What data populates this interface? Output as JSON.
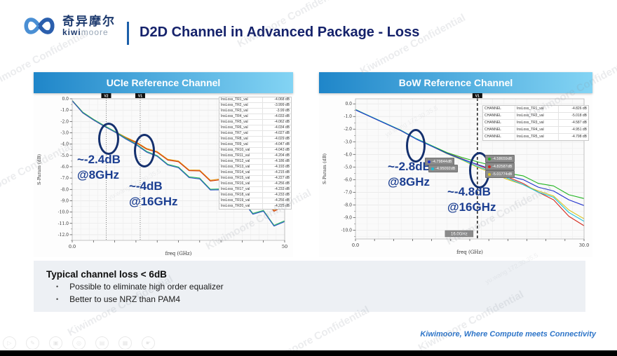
{
  "header": {
    "logo_cn": "奇异摩尔",
    "logo_kiwi": "kiwi",
    "logo_moore": "moore",
    "title": "D2D Channel in Advanced Package - Loss"
  },
  "left_panel": {
    "title": "UCIe Reference Channel",
    "ann1": {
      "l1": "~-2.4dB",
      "l2": "@8GHz"
    },
    "ann2": {
      "l1": "~-4dB",
      "l2": "@16GHz"
    }
  },
  "right_panel": {
    "title": "BoW Reference Channel",
    "ann1": {
      "l1": "~-2.8dB",
      "l2": "@8GHz"
    },
    "ann2": {
      "l1": "~-4.8dB",
      "l2": "@16GHz"
    },
    "badges": [
      {
        "dot": "#2233cc",
        "text": "-4.79844dB"
      },
      {
        "dot": "#19c0d8",
        "text": "-4.95092dB"
      },
      {
        "dot": "#1fb41f",
        "text": "-4.58659dB"
      },
      {
        "dot": "#d42a1e",
        "text": "-4.82587dB"
      },
      {
        "dot": "#d8c520",
        "text": "-5.01774dB"
      }
    ]
  },
  "notes": {
    "title": "Typical channel loss < 6dB",
    "bullets": [
      "Possible to eliminate high order equalizer",
      "Better to use NRZ than PAM4"
    ]
  },
  "footer": {
    "tagline": "Kiwimoore, Where Compute meets Connectivity",
    "toolbar_icons": [
      {
        "name": "play-icon",
        "glyph": "▷"
      },
      {
        "name": "edit-icon",
        "glyph": "✎"
      },
      {
        "name": "copy-icon",
        "glyph": "▣"
      },
      {
        "name": "search-icon",
        "glyph": "◎"
      },
      {
        "name": "save-icon",
        "glyph": "▤"
      },
      {
        "name": "image-icon",
        "glyph": "▦"
      },
      {
        "name": "hand-icon",
        "glyph": "☛"
      }
    ]
  },
  "watermarks": [
    {
      "text": "Kiwimoore Confidential"
    },
    {
      "text": "Kiwimoore Confidential"
    },
    {
      "text": "Kiwimoore Confidential"
    },
    {
      "text": "Kiwimoore Confidential"
    },
    {
      "text": "Kiwimoore Confidential"
    },
    {
      "text": "Kiwimoore Confidential"
    },
    {
      "text": "Kiwimoore Confidential"
    },
    {
      "text": "Kiwimoore Confidential"
    },
    {
      "text": "Kiwimoore Confidential"
    },
    {
      "text": "Kiwimoore Confidential"
    },
    {
      "text": "yu.wang 172.30.35.5",
      "small": true
    },
    {
      "text": "yu.wang 172.30.35.5",
      "small": true
    },
    {
      "text": "yu.wang 172.30.35.5",
      "small": true
    }
  ],
  "chart_data": [
    {
      "type": "line",
      "title": "UCIe Reference Channel insertion loss",
      "xlabel": "freq (GHz)",
      "ylabel": "S-Param (dB)",
      "xlim": [
        0,
        50
      ],
      "ylim": [
        -12.5,
        0
      ],
      "x_ticks": [
        {
          "v": 0,
          "label": "0.0"
        },
        {
          "v": 50,
          "label": "50"
        }
      ],
      "y_tick_step": 1,
      "grid_x_step": 2,
      "x_tick_step": 5,
      "legend_position": "right-inside",
      "grid": true,
      "marker_style": "dotted",
      "markers": [
        {
          "x": 8,
          "label": "V2"
        },
        {
          "x": 16,
          "label": "V1"
        }
      ],
      "series": [
        {
          "name": "upper-bundle-orange",
          "color": "#e8950f",
          "x": [
            0,
            2.5,
            5,
            7.5,
            10,
            12.5,
            15,
            17.5,
            20,
            22.5,
            25,
            27.5,
            30,
            32.5,
            35,
            37.5,
            40,
            42.5,
            45,
            47.5,
            50
          ],
          "y": [
            -0.15,
            -1.19,
            -1.81,
            -2.36,
            -2.87,
            -3.37,
            -3.8,
            -4.38,
            -4.66,
            -5.34,
            -5.49,
            -6.28,
            -6.3,
            -7.19,
            -7.08,
            -8.09,
            -7.86,
            -8.98,
            -8.62,
            -9.86,
            -9.37
          ]
        },
        {
          "name": "upper-bundle-red",
          "color": "#d03a10",
          "x": [
            0,
            2.5,
            5,
            7.5,
            10,
            12.5,
            15,
            17.5,
            20,
            22.5,
            25,
            27.5,
            30,
            32.5,
            35,
            37.5,
            40,
            42.5,
            45,
            47.5,
            50
          ],
          "y": [
            -0.18,
            -1.25,
            -1.87,
            -2.42,
            -2.93,
            -3.43,
            -3.87,
            -4.45,
            -4.73,
            -5.41,
            -5.56,
            -6.35,
            -6.37,
            -7.26,
            -7.15,
            -8.16,
            -7.93,
            -9.05,
            -8.69,
            -9.93,
            -9.44
          ]
        },
        {
          "name": "lower-bundle-green",
          "color": "#2fbf62",
          "x": [
            0,
            2.5,
            5,
            7.5,
            10,
            12.5,
            15,
            17.5,
            20,
            22.5,
            25,
            27.5,
            30,
            32.5,
            35,
            37.5,
            40,
            42.5,
            45,
            47.5,
            50
          ],
          "y": [
            -0.15,
            -1.19,
            -1.81,
            -2.36,
            -2.87,
            -3.46,
            -3.98,
            -4.64,
            -5.01,
            -5.78,
            -6.02,
            -6.89,
            -7.0,
            -7.98,
            -7.96,
            -9.05,
            -8.91,
            -10.12,
            -9.85,
            -11.17,
            -10.77
          ]
        },
        {
          "name": "lower-bundle-blue",
          "color": "#2a52c4",
          "x": [
            0,
            2.5,
            5,
            7.5,
            10,
            12.5,
            15,
            17.5,
            20,
            22.5,
            25,
            27.5,
            30,
            32.5,
            35,
            37.5,
            40,
            42.5,
            45,
            47.5,
            50
          ],
          "y": [
            -0.18,
            -1.25,
            -1.87,
            -2.42,
            -2.93,
            -3.53,
            -4.05,
            -4.71,
            -5.08,
            -5.85,
            -6.09,
            -6.96,
            -7.07,
            -8.05,
            -8.03,
            -9.12,
            -8.98,
            -10.19,
            -9.92,
            -11.24,
            -10.84
          ]
        }
      ],
      "legend_rows": [
        [
          "InsLoss_TR1_val",
          "-4.068 dB"
        ],
        [
          "InsLoss_TR2_val",
          "-3.999 dB"
        ],
        [
          "InsLoss_TR3_val",
          "-3.99 dB"
        ],
        [
          "InsLoss_TR4_val",
          "-4.033 dB"
        ],
        [
          "InsLoss_TR5_val",
          "-4.062 dB"
        ],
        [
          "InsLoss_TR6_val",
          "-4.034 dB"
        ],
        [
          "InsLoss_TR7_val",
          "-4.027 dB"
        ],
        [
          "InsLoss_TR8_val",
          "-4.029 dB"
        ],
        [
          "InsLoss_TR9_val",
          "-4.047 dB"
        ],
        [
          "InsLoss_TR10_val",
          "-4.043 dB"
        ],
        [
          "InsLoss_TR11_val",
          "-4.204 dB"
        ],
        [
          "InsLoss_TR12_val",
          "-4.186 dB"
        ],
        [
          "InsLoss_TR13_val",
          "-4.193 dB"
        ],
        [
          "InsLoss_TR14_val",
          "-4.215 dB"
        ],
        [
          "InsLoss_TR15_val",
          "-4.227 dB"
        ],
        [
          "InsLoss_TR16_val",
          "-4.256 dB"
        ],
        [
          "InsLoss_TR17_val",
          "-4.233 dB"
        ],
        [
          "InsLoss_TR18_val",
          "-4.233 dB"
        ],
        [
          "InsLoss_TR19_val",
          "-4.256 dB"
        ],
        [
          "InsLoss_TR20_val",
          "-4.225 dB"
        ]
      ],
      "annotations": [
        "~-2.4dB @8GHz",
        "~-4dB @16GHz"
      ]
    },
    {
      "type": "line",
      "title": "BoW Reference Channel insertion loss",
      "xlabel": "freq (GHz)",
      "ylabel": "S-Param (dB)",
      "xlim": [
        0,
        30
      ],
      "ylim": [
        -10.7,
        0.4
      ],
      "x_ticks": [
        {
          "v": 0,
          "label": "0.0"
        },
        {
          "v": 30,
          "label": "30.0"
        }
      ],
      "y_tick_step": 1,
      "grid_x_step": 1.5,
      "x_tick_step": 2.5,
      "grid": true,
      "marker_style": "dashed",
      "markers": [
        {
          "x": 16,
          "label": "V1"
        }
      ],
      "marker_value_label": "16.0GHz",
      "series": [
        {
          "name": "InsLoss_TR1",
          "color": "#d42a1e",
          "x": [
            0,
            2,
            4,
            6,
            8,
            10,
            12,
            14,
            16,
            18,
            20,
            22,
            24,
            26,
            28,
            30
          ],
          "y": [
            -0.45,
            -1.02,
            -1.57,
            -2.12,
            -2.78,
            -3.33,
            -3.9,
            -4.35,
            -4.826,
            -5.3,
            -5.8,
            -6.3,
            -7.0,
            -7.6,
            -8.9,
            -9.65
          ]
        },
        {
          "name": "InsLoss_TR2",
          "color": "#d8c520",
          "x": [
            0,
            2,
            4,
            6,
            8,
            10,
            12,
            14,
            16,
            18,
            20,
            22,
            24,
            26,
            28,
            30
          ],
          "y": [
            -0.47,
            -1.02,
            -1.58,
            -2.14,
            -2.79,
            -3.35,
            -3.95,
            -4.45,
            -5.018,
            -5.5,
            -6.0,
            -6.4,
            -6.9,
            -7.3,
            -8.4,
            -9.1
          ]
        },
        {
          "name": "InsLoss_TR3",
          "color": "#1fb41f",
          "x": [
            0,
            2,
            4,
            6,
            8,
            10,
            12,
            14,
            16,
            18,
            20,
            22,
            24,
            26,
            28,
            30
          ],
          "y": [
            -0.45,
            -1.0,
            -1.55,
            -2.1,
            -2.75,
            -3.3,
            -3.85,
            -4.25,
            -4.587,
            -4.9,
            -5.5,
            -5.7,
            -6.3,
            -6.5,
            -7.2,
            -7.5
          ]
        },
        {
          "name": "InsLoss_TR4",
          "color": "#19c0d8",
          "x": [
            0,
            2,
            4,
            6,
            8,
            10,
            12,
            14,
            16,
            18,
            20,
            22,
            24,
            26,
            28,
            30
          ],
          "y": [
            -0.46,
            -1.01,
            -1.56,
            -2.11,
            -2.77,
            -3.34,
            -3.93,
            -4.42,
            -4.951,
            -5.4,
            -5.9,
            -6.4,
            -7.0,
            -7.4,
            -8.6,
            -9.3
          ]
        },
        {
          "name": "InsLoss_TR5",
          "color": "#2233cc",
          "x": [
            0,
            2,
            4,
            6,
            8,
            10,
            12,
            14,
            16,
            18,
            20,
            22,
            24,
            26,
            28,
            30
          ],
          "y": [
            -0.48,
            -1.03,
            -1.58,
            -2.13,
            -2.8,
            -3.36,
            -3.92,
            -4.38,
            -4.798,
            -5.2,
            -5.7,
            -6.0,
            -6.6,
            -6.9,
            -7.6,
            -8.05
          ]
        }
      ],
      "table_rows": [
        [
          "CHANNEL",
          "InsLoss_TR1_val",
          "-4.826 dB"
        ],
        [
          "CHANNEL",
          "InsLoss_TR2_val",
          "-5.018 dB"
        ],
        [
          "CHANNEL",
          "InsLoss_TR3_val",
          "-4.587 dB"
        ],
        [
          "CHANNEL",
          "InsLoss_TR4_val",
          "-4.951 dB"
        ],
        [
          "CHANNEL",
          "InsLoss_TR5_val",
          "-4.798 dB"
        ]
      ],
      "annotations": [
        "~-2.8dB @8GHz",
        "~-4.8dB @16GHz"
      ]
    }
  ]
}
